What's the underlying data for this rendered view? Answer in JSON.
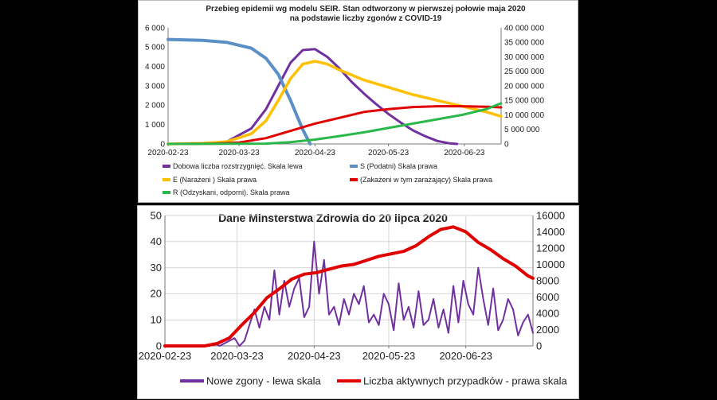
{
  "chart_data": [
    {
      "type": "line",
      "title_line1": "Przebieg epidemii wg modelu SEIR. Stan odtworzony w pierwszej połowie maja 2020",
      "title_line2": "na podstawie liczby zgonów z COVID-19",
      "x_ticks": [
        "2020-02-23",
        "2020-03-23",
        "2020-04-23",
        "2020-05-23",
        "2020-06-23"
      ],
      "x_range": [
        "2020-02-23",
        "2020-07-08"
      ],
      "y_left": {
        "min": 0,
        "max": 6000,
        "ticks": [
          "0",
          "1 000",
          "2 000",
          "3 000",
          "4 000",
          "5 000",
          "6 000"
        ]
      },
      "y_right": {
        "min": 0,
        "max": 40000000,
        "ticks": [
          "0",
          "5 000 000",
          "10 000 000",
          "15 000 000",
          "20 000 000",
          "25 000 000",
          "30 000 000",
          "35 000 000",
          "40 000 000"
        ]
      },
      "grid": false,
      "legend_position": "bottom",
      "series": [
        {
          "name": "Dobowa liczba rozstrzygnięć. Skala lewa",
          "axis": "left",
          "color": "#7030a0",
          "x": [
            "2020-02-23",
            "2020-03-08",
            "2020-03-18",
            "2020-03-28",
            "2020-04-03",
            "2020-04-08",
            "2020-04-13",
            "2020-04-18",
            "2020-04-23",
            "2020-04-28",
            "2020-05-03",
            "2020-05-08",
            "2020-05-13",
            "2020-05-18",
            "2020-05-23",
            "2020-05-28",
            "2020-06-02",
            "2020-06-07",
            "2020-06-12",
            "2020-06-17",
            "2020-06-20"
          ],
          "y": [
            0,
            20,
            120,
            800,
            1800,
            3000,
            4200,
            4850,
            4900,
            4500,
            3900,
            3200,
            2600,
            2050,
            1550,
            1100,
            700,
            400,
            150,
            30,
            0
          ]
        },
        {
          "name": "S (Podatni) Skala prawa",
          "axis": "right",
          "color": "#5b8fc7",
          "x": [
            "2020-02-23",
            "2020-03-08",
            "2020-03-18",
            "2020-03-28",
            "2020-04-03",
            "2020-04-08",
            "2020-04-13",
            "2020-04-18",
            "2020-04-21"
          ],
          "y": [
            36000000,
            35700000,
            35000000,
            33000000,
            29500000,
            24000000,
            15000000,
            5000000,
            0
          ]
        },
        {
          "name": "E (Narażeni ) Skala prawa",
          "axis": "right",
          "color": "#ffc000",
          "x": [
            "2020-02-23",
            "2020-03-08",
            "2020-03-18",
            "2020-03-28",
            "2020-04-03",
            "2020-04-08",
            "2020-04-13",
            "2020-04-18",
            "2020-04-23",
            "2020-04-28",
            "2020-05-03",
            "2020-05-13",
            "2020-05-23",
            "2020-06-02",
            "2020-06-12",
            "2020-06-22",
            "2020-07-02",
            "2020-07-08"
          ],
          "y": [
            0,
            200000,
            800000,
            3500000,
            8000000,
            15000000,
            22500000,
            27500000,
            28500000,
            27500000,
            25500000,
            22000000,
            19500000,
            17000000,
            15000000,
            13000000,
            11000000,
            9500000
          ]
        },
        {
          "name": "(Zakażeni w tym zarażający) Skala prawa",
          "axis": "right",
          "color": "#e00000",
          "x": [
            "2020-02-23",
            "2020-03-13",
            "2020-03-23",
            "2020-04-03",
            "2020-04-13",
            "2020-04-23",
            "2020-05-03",
            "2020-05-13",
            "2020-05-23",
            "2020-06-02",
            "2020-06-12",
            "2020-06-22",
            "2020-07-02",
            "2020-07-08"
          ],
          "y": [
            0,
            100000,
            500000,
            2000000,
            4500000,
            7000000,
            9000000,
            11000000,
            12000000,
            12700000,
            13000000,
            13000000,
            12800000,
            12600000
          ]
        },
        {
          "name": "R (Odzyskani, odporni). Skala prawa",
          "axis": "right",
          "color": "#2bb84a",
          "x": [
            "2020-02-23",
            "2020-04-03",
            "2020-04-13",
            "2020-04-23",
            "2020-05-03",
            "2020-05-13",
            "2020-05-23",
            "2020-06-02",
            "2020-06-12",
            "2020-06-22",
            "2020-07-02",
            "2020-07-08"
          ],
          "y": [
            0,
            100000,
            600000,
            1500000,
            2700000,
            4000000,
            5500000,
            7000000,
            8500000,
            10000000,
            12000000,
            14000000
          ]
        }
      ]
    },
    {
      "type": "line",
      "title": "Dane Minsterstwa Zdrowia do 20 lipca 2020",
      "x_ticks": [
        "2020-02-23",
        "2020-03-23",
        "2020-04-23",
        "2020-05-23",
        "2020-06-23"
      ],
      "x_range": [
        "2020-02-23",
        "2020-07-20"
      ],
      "y_left": {
        "min": 0,
        "max": 50,
        "ticks": [
          "0",
          "10",
          "20",
          "30",
          "40",
          "50"
        ]
      },
      "y_right": {
        "min": 0,
        "max": 16000,
        "ticks": [
          "0",
          "2000",
          "4000",
          "6000",
          "8000",
          "10000",
          "12000",
          "14000",
          "16000"
        ]
      },
      "grid": true,
      "legend_position": "bottom",
      "series": [
        {
          "name": "Nowe zgony - lewa skala",
          "axis": "left",
          "color": "#7030a0",
          "x": [
            "2020-02-23",
            "2020-03-12",
            "2020-03-14",
            "2020-03-16",
            "2020-03-18",
            "2020-03-20",
            "2020-03-22",
            "2020-03-24",
            "2020-03-26",
            "2020-03-28",
            "2020-03-30",
            "2020-04-01",
            "2020-04-03",
            "2020-04-05",
            "2020-04-07",
            "2020-04-09",
            "2020-04-11",
            "2020-04-13",
            "2020-04-15",
            "2020-04-17",
            "2020-04-19",
            "2020-04-21",
            "2020-04-23",
            "2020-04-25",
            "2020-04-27",
            "2020-04-29",
            "2020-05-01",
            "2020-05-03",
            "2020-05-05",
            "2020-05-07",
            "2020-05-09",
            "2020-05-11",
            "2020-05-13",
            "2020-05-15",
            "2020-05-17",
            "2020-05-19",
            "2020-05-21",
            "2020-05-23",
            "2020-05-25",
            "2020-05-27",
            "2020-05-29",
            "2020-05-31",
            "2020-06-02",
            "2020-06-04",
            "2020-06-06",
            "2020-06-08",
            "2020-06-10",
            "2020-06-12",
            "2020-06-14",
            "2020-06-16",
            "2020-06-18",
            "2020-06-20",
            "2020-06-22",
            "2020-06-24",
            "2020-06-26",
            "2020-06-28",
            "2020-06-30",
            "2020-07-02",
            "2020-07-04",
            "2020-07-06",
            "2020-07-08",
            "2020-07-10",
            "2020-07-12",
            "2020-07-14",
            "2020-07-16",
            "2020-07-18",
            "2020-07-20"
          ],
          "y": [
            0,
            0,
            1,
            0,
            1,
            2,
            3,
            0,
            2,
            8,
            14,
            7,
            15,
            10,
            29,
            12,
            25,
            15,
            22,
            26,
            11,
            15,
            40,
            20,
            33,
            12,
            15,
            8,
            18,
            12,
            20,
            16,
            23,
            9,
            12,
            8,
            20,
            16,
            6,
            24,
            10,
            15,
            7,
            21,
            8,
            10,
            18,
            7,
            14,
            5,
            23,
            9,
            25,
            16,
            12,
            30,
            18,
            8,
            22,
            6,
            10,
            18,
            14,
            4,
            9,
            12,
            5
          ]
        },
        {
          "name": "Liczba aktywnych przypadków - prawa skala",
          "axis": "right",
          "color": "#e00000",
          "x": [
            "2020-02-23",
            "2020-03-10",
            "2020-03-15",
            "2020-03-20",
            "2020-03-25",
            "2020-03-30",
            "2020-04-04",
            "2020-04-09",
            "2020-04-14",
            "2020-04-19",
            "2020-04-24",
            "2020-04-29",
            "2020-05-04",
            "2020-05-09",
            "2020-05-14",
            "2020-05-19",
            "2020-05-24",
            "2020-05-29",
            "2020-06-03",
            "2020-06-08",
            "2020-06-13",
            "2020-06-18",
            "2020-06-23",
            "2020-06-28",
            "2020-07-03",
            "2020-07-08",
            "2020-07-13",
            "2020-07-18",
            "2020-07-20"
          ],
          "y": [
            0,
            0,
            300,
            1000,
            2600,
            4100,
            5900,
            7000,
            8200,
            8800,
            9000,
            9400,
            9800,
            10000,
            10500,
            11000,
            11300,
            11600,
            12300,
            13400,
            14300,
            14600,
            14000,
            12700,
            11800,
            10700,
            9800,
            8600,
            8300
          ]
        }
      ]
    }
  ]
}
